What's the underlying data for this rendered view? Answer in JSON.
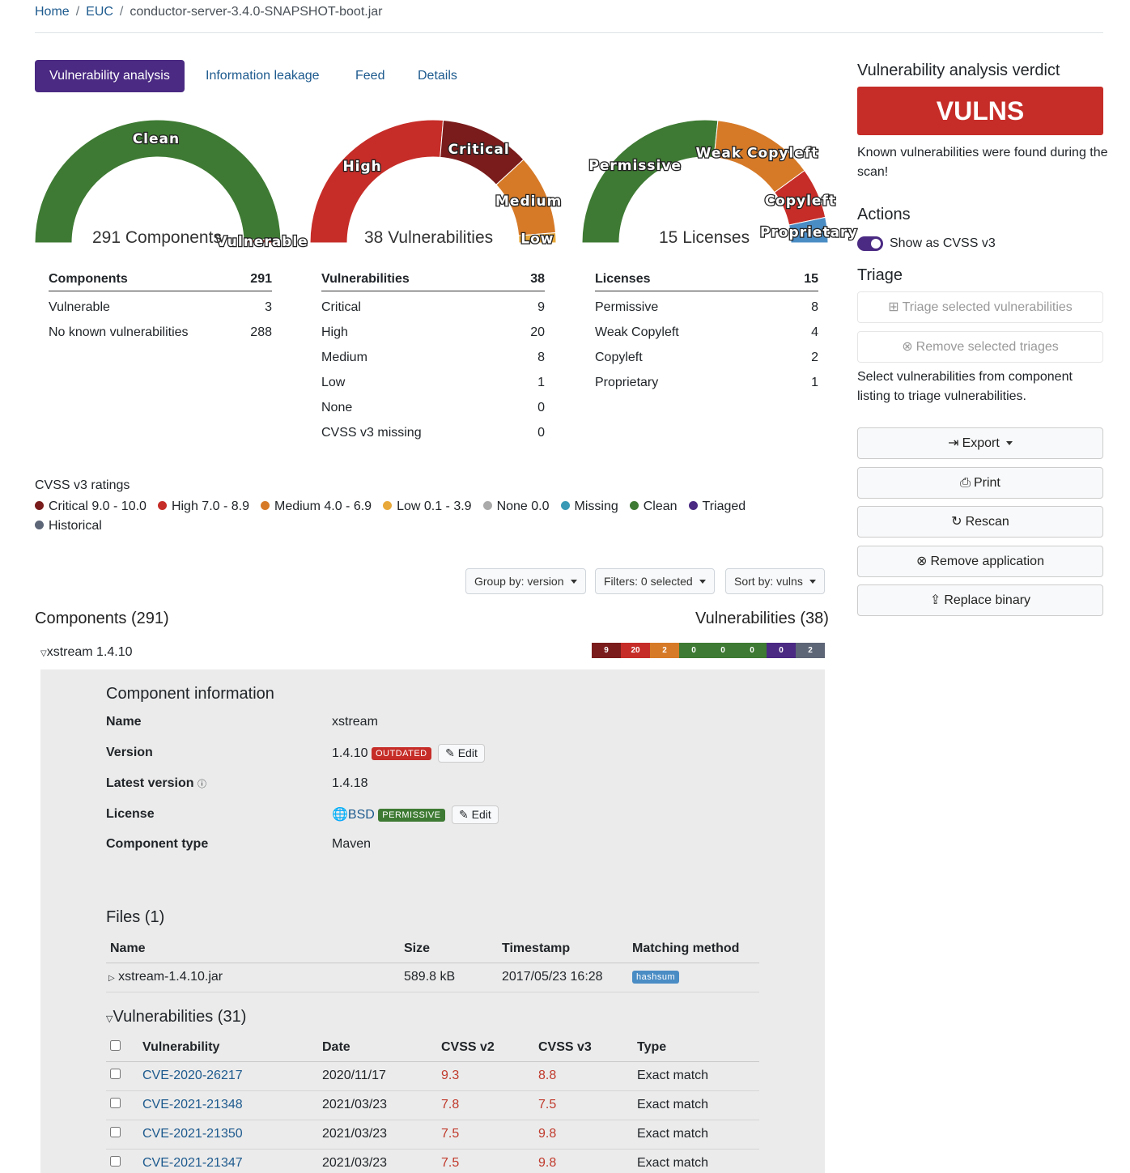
{
  "breadcrumb": {
    "home": "Home",
    "group": "EUC",
    "current": "conductor-server-3.4.0-SNAPSHOT-boot.jar"
  },
  "tabs": [
    "Vulnerability analysis",
    "Information leakage",
    "Feed",
    "Details"
  ],
  "gauges": {
    "components": {
      "center_label": "291 Components",
      "segments": [
        {
          "label": "Clean",
          "value": 288,
          "color": "#3e7a33"
        },
        {
          "label": "Vulnerable",
          "value": 3,
          "color": "#c62d28"
        }
      ]
    },
    "vulnerabilities": {
      "center_label": "38 Vulnerabilities",
      "segments": [
        {
          "label": "High",
          "value": 20,
          "color": "#c62d28"
        },
        {
          "label": "Critical",
          "value": 9,
          "color": "#7a1c1c"
        },
        {
          "label": "Medium",
          "value": 8,
          "color": "#d67a28"
        },
        {
          "label": "Low",
          "value": 1,
          "color": "#e8a93a"
        }
      ]
    },
    "licenses": {
      "center_label": "15 Licenses",
      "segments": [
        {
          "label": "Permissive",
          "value": 8,
          "color": "#3e7a33"
        },
        {
          "label": "Weak Copyleft",
          "value": 4,
          "color": "#d67a28"
        },
        {
          "label": "Copyleft",
          "value": 2,
          "color": "#c62d28"
        },
        {
          "label": "Proprietary",
          "value": 1,
          "color": "#4a8cc4"
        }
      ]
    }
  },
  "summary": {
    "components": {
      "title": "Components",
      "total": "291",
      "rows": [
        {
          "label": "Vulnerable",
          "value": "3"
        },
        {
          "label": "No known vulnerabilities",
          "value": "288"
        }
      ]
    },
    "vulnerabilities": {
      "title": "Vulnerabilities",
      "total": "38",
      "rows": [
        {
          "label": "Critical",
          "value": "9"
        },
        {
          "label": "High",
          "value": "20"
        },
        {
          "label": "Medium",
          "value": "8"
        },
        {
          "label": "Low",
          "value": "1"
        },
        {
          "label": "None",
          "value": "0"
        },
        {
          "label": "CVSS v3 missing",
          "value": "0"
        }
      ]
    },
    "licenses": {
      "title": "Licenses",
      "total": "15",
      "rows": [
        {
          "label": "Permissive",
          "value": "8"
        },
        {
          "label": "Weak Copyleft",
          "value": "4"
        },
        {
          "label": "Copyleft",
          "value": "2"
        },
        {
          "label": "Proprietary",
          "value": "1"
        }
      ]
    }
  },
  "legend": {
    "title": "CVSS v3 ratings",
    "items": [
      {
        "label": "Critical 9.0 - 10.0",
        "color": "#7a1c1c"
      },
      {
        "label": "High 7.0 - 8.9",
        "color": "#c62d28"
      },
      {
        "label": "Medium 4.0 - 6.9",
        "color": "#d67a28"
      },
      {
        "label": "Low 0.1 - 3.9",
        "color": "#e8a93a"
      },
      {
        "label": "None 0.0",
        "color": "#aaaaaa"
      },
      {
        "label": "Missing",
        "color": "#3a9ab5"
      },
      {
        "label": "Clean",
        "color": "#3e7a33"
      },
      {
        "label": "Triaged",
        "color": "#4a2a82"
      },
      {
        "label": "Historical",
        "color": "#5d6677"
      }
    ]
  },
  "controls": {
    "group_by": "Group by: version",
    "filters": "Filters: 0 selected",
    "sort_by": "Sort by: vulns"
  },
  "components_title": "Components (291)",
  "vulnerabilities_title": "Vulnerabilities (38)",
  "component_row": {
    "name": "xstream 1.4.10"
  },
  "vuln_bar": [
    {
      "value": "9",
      "color": "#7a1c1c"
    },
    {
      "value": "20",
      "color": "#c62d28"
    },
    {
      "value": "2",
      "color": "#d67a28"
    },
    {
      "value": "0",
      "color": "#3e7a33"
    },
    {
      "value": "0",
      "color": "#3e7a33"
    },
    {
      "value": "0",
      "color": "#3e7a33"
    },
    {
      "value": "0",
      "color": "#4a2a82"
    },
    {
      "value": "2",
      "color": "#5d6677"
    }
  ],
  "component_info": {
    "title": "Component information",
    "name_label": "Name",
    "name": "xstream",
    "version_label": "Version",
    "version": "1.4.10",
    "outdated_badge": "OUTDATED",
    "edit_label": "Edit",
    "latest_label": "Latest version",
    "latest": "1.4.18",
    "license_label": "License",
    "license": "BSD",
    "license_badge": "PERMISSIVE",
    "type_label": "Component type",
    "type": "Maven"
  },
  "files": {
    "title": "Files (1)",
    "headers": [
      "Name",
      "Size",
      "Timestamp",
      "Matching method"
    ],
    "rows": [
      {
        "name": "xstream-1.4.10.jar",
        "size": "589.8 kB",
        "timestamp": "2017/05/23 16:28",
        "method": "hashsum"
      }
    ]
  },
  "vulns": {
    "title": "Vulnerabilities (31)",
    "headers": [
      "Vulnerability",
      "Date",
      "CVSS v2",
      "CVSS v3",
      "Type"
    ],
    "rows": [
      {
        "id": "CVE-2020-26217",
        "date": "2020/11/17",
        "v2": "9.3",
        "v3": "8.8",
        "type": "Exact match"
      },
      {
        "id": "CVE-2021-21348",
        "date": "2021/03/23",
        "v2": "7.8",
        "v3": "7.5",
        "type": "Exact match"
      },
      {
        "id": "CVE-2021-21350",
        "date": "2021/03/23",
        "v2": "7.5",
        "v3": "9.8",
        "type": "Exact match"
      },
      {
        "id": "CVE-2021-21347",
        "date": "2021/03/23",
        "v2": "7.5",
        "v3": "9.8",
        "type": "Exact match"
      }
    ]
  },
  "sidebar": {
    "verdict_title": "Vulnerability analysis verdict",
    "verdict": "VULNS",
    "verdict_message": "Known vulnerabilities were found during the scan!",
    "actions_title": "Actions",
    "toggle_label": "Show as CVSS v3",
    "triage_title": "Triage",
    "triage_selected": "Triage selected vulnerabilities",
    "remove_triages": "Remove selected triages",
    "triage_hint": "Select vulnerabilities from component listing to triage vulnerabilities.",
    "export": "Export",
    "print": "Print",
    "rescan": "Rescan",
    "remove_application": "Remove application",
    "replace_binary": "Replace binary"
  }
}
